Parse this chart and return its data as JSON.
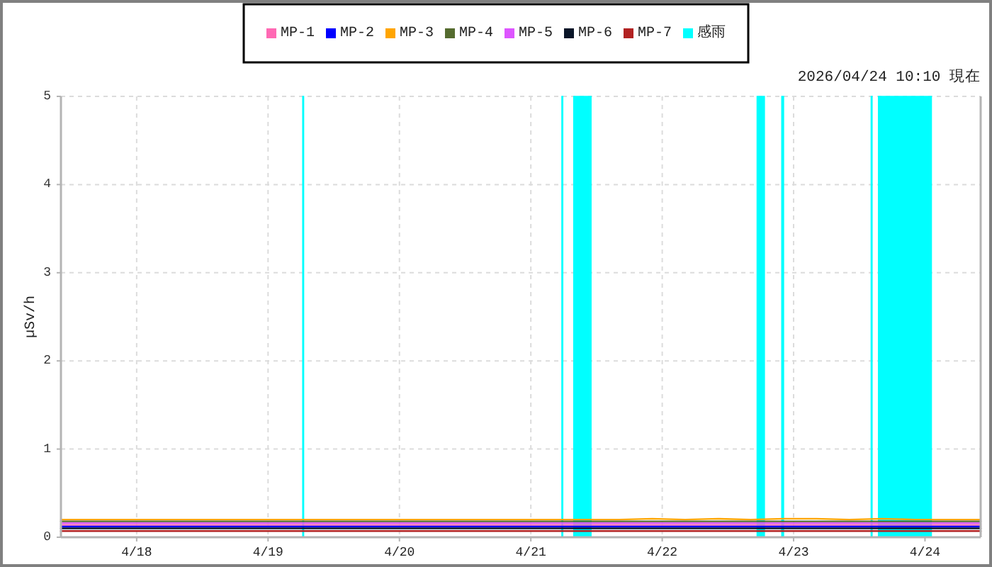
{
  "chart_data": {
    "type": "line",
    "subtitle": "2026/04/24 10:10 現在",
    "ylabel": "µSv/h",
    "xlim": [
      "2026-04-17T10:10",
      "2026-04-24T10:10"
    ],
    "xticks": [
      {
        "value": "2026-04-18",
        "label": "4/18"
      },
      {
        "value": "2026-04-19",
        "label": "4/19"
      },
      {
        "value": "2026-04-20",
        "label": "4/20"
      },
      {
        "value": "2026-04-21",
        "label": "4/21"
      },
      {
        "value": "2026-04-22",
        "label": "4/22"
      },
      {
        "value": "2026-04-23",
        "label": "4/23"
      },
      {
        "value": "2026-04-24",
        "label": "4/24"
      }
    ],
    "ylim": [
      0,
      5
    ],
    "yticks": [
      0,
      1,
      2,
      3,
      4,
      5
    ],
    "grid": true,
    "legend": "top",
    "x": [
      "2026-04-17T10:10",
      "2026-04-17T16:10",
      "2026-04-17T22:10",
      "2026-04-18T04:10",
      "2026-04-18T10:10",
      "2026-04-18T16:10",
      "2026-04-18T22:10",
      "2026-04-19T04:10",
      "2026-04-19T10:10",
      "2026-04-19T16:10",
      "2026-04-19T22:10",
      "2026-04-20T04:10",
      "2026-04-20T10:10",
      "2026-04-20T16:10",
      "2026-04-20T22:10",
      "2026-04-21T04:10",
      "2026-04-21T10:10",
      "2026-04-21T16:10",
      "2026-04-21T22:10",
      "2026-04-22T04:10",
      "2026-04-22T10:10",
      "2026-04-22T16:10",
      "2026-04-22T22:10",
      "2026-04-23T04:10",
      "2026-04-23T10:10",
      "2026-04-23T16:10",
      "2026-04-23T22:10",
      "2026-04-24T04:10",
      "2026-04-24T10:10"
    ],
    "series": [
      {
        "name": "MP-1",
        "color": "#ff69b4",
        "values": [
          0.14,
          0.14,
          0.14,
          0.14,
          0.14,
          0.14,
          0.14,
          0.14,
          0.14,
          0.14,
          0.14,
          0.14,
          0.14,
          0.14,
          0.14,
          0.14,
          0.14,
          0.14,
          0.14,
          0.14,
          0.14,
          0.14,
          0.14,
          0.14,
          0.14,
          0.14,
          0.14,
          0.14,
          0.14
        ]
      },
      {
        "name": "MP-2",
        "color": "#0000ff",
        "values": [
          0.12,
          0.12,
          0.12,
          0.12,
          0.12,
          0.12,
          0.12,
          0.12,
          0.12,
          0.12,
          0.12,
          0.12,
          0.12,
          0.12,
          0.12,
          0.12,
          0.12,
          0.12,
          0.12,
          0.12,
          0.12,
          0.12,
          0.12,
          0.12,
          0.12,
          0.12,
          0.12,
          0.12,
          0.12
        ]
      },
      {
        "name": "MP-3",
        "color": "#ffa500",
        "values": [
          0.2,
          0.2,
          0.2,
          0.2,
          0.2,
          0.2,
          0.2,
          0.2,
          0.2,
          0.2,
          0.2,
          0.2,
          0.2,
          0.2,
          0.2,
          0.2,
          0.2,
          0.2,
          0.21,
          0.2,
          0.21,
          0.2,
          0.21,
          0.21,
          0.2,
          0.21,
          0.2,
          0.2,
          0.2
        ]
      },
      {
        "name": "MP-4",
        "color": "#556b2f",
        "values": [
          0.18,
          0.18,
          0.18,
          0.18,
          0.18,
          0.18,
          0.18,
          0.18,
          0.18,
          0.18,
          0.18,
          0.18,
          0.18,
          0.18,
          0.18,
          0.18,
          0.18,
          0.18,
          0.18,
          0.18,
          0.18,
          0.18,
          0.18,
          0.18,
          0.18,
          0.18,
          0.18,
          0.18,
          0.18
        ]
      },
      {
        "name": "MP-5",
        "color": "#dd55ff",
        "values": [
          0.16,
          0.16,
          0.16,
          0.16,
          0.16,
          0.16,
          0.16,
          0.16,
          0.16,
          0.16,
          0.16,
          0.16,
          0.16,
          0.16,
          0.16,
          0.16,
          0.16,
          0.16,
          0.16,
          0.16,
          0.16,
          0.16,
          0.16,
          0.16,
          0.16,
          0.16,
          0.16,
          0.16,
          0.16
        ]
      },
      {
        "name": "MP-6",
        "color": "#0a1628",
        "values": [
          0.1,
          0.1,
          0.1,
          0.1,
          0.1,
          0.1,
          0.1,
          0.1,
          0.1,
          0.1,
          0.1,
          0.1,
          0.1,
          0.1,
          0.1,
          0.1,
          0.1,
          0.1,
          0.1,
          0.1,
          0.1,
          0.1,
          0.1,
          0.1,
          0.1,
          0.1,
          0.1,
          0.1,
          0.1
        ]
      },
      {
        "name": "MP-7",
        "color": "#b22222",
        "values": [
          0.07,
          0.07,
          0.07,
          0.07,
          0.07,
          0.07,
          0.07,
          0.07,
          0.07,
          0.07,
          0.07,
          0.07,
          0.07,
          0.07,
          0.07,
          0.07,
          0.07,
          0.07,
          0.07,
          0.07,
          0.07,
          0.07,
          0.07,
          0.07,
          0.07,
          0.07,
          0.07,
          0.07,
          0.07
        ]
      },
      {
        "name": "感雨",
        "type": "area",
        "color": "#00ffff",
        "x": [
          "2026-04-17T10:10",
          "2026-04-19T06:20",
          "2026-04-19T06:20",
          "2026-04-19T06:30",
          "2026-04-19T06:30",
          "2026-04-21T05:40",
          "2026-04-21T05:40",
          "2026-04-21T05:50",
          "2026-04-21T05:50",
          "2026-04-21T07:50",
          "2026-04-21T07:50",
          "2026-04-21T11:00",
          "2026-04-21T11:00",
          "2026-04-22T17:20",
          "2026-04-22T17:20",
          "2026-04-22T18:40",
          "2026-04-22T18:40",
          "2026-04-22T21:50",
          "2026-04-22T21:50",
          "2026-04-22T22:10",
          "2026-04-22T22:10",
          "2026-04-23T14:10",
          "2026-04-23T14:10",
          "2026-04-23T14:20",
          "2026-04-23T14:20",
          "2026-04-23T15:30",
          "2026-04-23T15:30",
          "2026-04-24T01:10",
          "2026-04-24T01:10",
          "2026-04-24T10:10"
        ],
        "values": [
          0,
          0,
          5,
          5,
          0,
          0,
          5,
          5,
          0,
          0,
          5,
          5,
          0,
          0,
          5,
          5,
          0,
          0,
          5,
          5,
          0,
          0,
          5,
          5,
          0,
          0,
          5,
          5,
          0,
          0
        ]
      }
    ]
  }
}
